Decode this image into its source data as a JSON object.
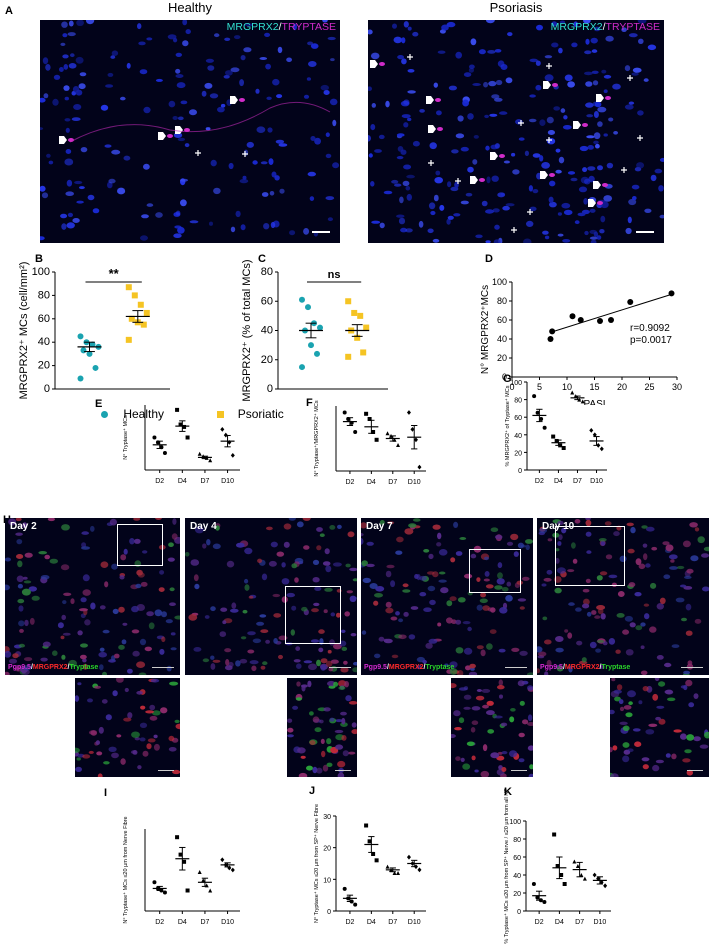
{
  "panels": {
    "A": "A",
    "B": "B",
    "C": "C",
    "D": "D",
    "E": "E",
    "F": "F",
    "G": "G",
    "H": "H",
    "I": "I",
    "J": "J",
    "K": "K"
  },
  "panel_a": {
    "healthy_title": "Healthy",
    "psoriasis_title": "Psoriasis",
    "stain_a": "MRGPRX2",
    "stain_sep": "/",
    "stain_b": "TRYPTASE",
    "colors": {
      "cyan": "#33e0d0",
      "magenta": "#d02cc9",
      "background": "#02031a",
      "nuclei": "#1a2ad6"
    }
  },
  "legend": {
    "healthy": "Healthy",
    "psoriatic": "Psoriatic",
    "colors": {
      "healthy": "#1aa3b0",
      "psoriatic": "#f5c423"
    }
  },
  "panel_h": {
    "days": [
      "Day 2",
      "Day 4",
      "Day 7",
      "Day 10"
    ],
    "stain_pgp": "Pgp9.5",
    "stain_mrg": "MRGPRX2",
    "stain_try": "Tryptase",
    "sep": "/",
    "colors": {
      "pgp": "#d42ad0",
      "mrg": "#ff2a2a",
      "try": "#2ad62a"
    }
  },
  "chart_data": [
    {
      "id": "B",
      "type": "scatter",
      "xlabel": "",
      "ylabel": "MRGPRX2⁺ MCs (cell/mm²)",
      "ylim": [
        0,
        100
      ],
      "yticks": [
        "0",
        "20",
        "40",
        "60",
        "80",
        "100"
      ],
      "significance": "**",
      "series": [
        {
          "name": "Healthy",
          "values": [
            45,
            40,
            38,
            36,
            33,
            30,
            18,
            9
          ],
          "mean": 36,
          "sem": 4
        },
        {
          "name": "Psoriatic",
          "values": [
            87,
            80,
            72,
            65,
            60,
            57,
            55,
            42
          ],
          "mean": 62,
          "sem": 5
        }
      ]
    },
    {
      "id": "C",
      "type": "scatter",
      "xlabel": "",
      "ylabel": "MRGPRX2⁺ (% of total MCs)",
      "ylim": [
        0,
        80
      ],
      "yticks": [
        "0",
        "20",
        "40",
        "60",
        "80"
      ],
      "significance": "ns",
      "series": [
        {
          "name": "Healthy",
          "values": [
            61,
            56,
            45,
            42,
            40,
            30,
            24,
            15
          ],
          "mean": 40,
          "sem": 5
        },
        {
          "name": "Psoriatic",
          "values": [
            60,
            52,
            50,
            42,
            40,
            35,
            25,
            22
          ],
          "mean": 40,
          "sem": 4
        }
      ]
    },
    {
      "id": "D",
      "type": "scatter",
      "xlabel": "PASI",
      "ylabel": "N° MRGPRX2⁺MCs",
      "xlim": [
        0,
        30
      ],
      "ylim": [
        0,
        100
      ],
      "xticks": [
        "0",
        "5",
        "10",
        "15",
        "20",
        "25",
        "30"
      ],
      "yticks": [
        "0",
        "20",
        "40",
        "60",
        "80",
        "100"
      ],
      "points": [
        [
          7,
          40
        ],
        [
          7.3,
          48
        ],
        [
          11,
          64
        ],
        [
          12.5,
          60
        ],
        [
          16,
          59
        ],
        [
          18,
          60
        ],
        [
          21.5,
          79
        ],
        [
          29,
          88
        ]
      ],
      "fit": [
        [
          7,
          47
        ],
        [
          29,
          87
        ]
      ],
      "annotation_r": "r=0.9092",
      "annotation_p": "p=0.0017"
    },
    {
      "id": "E",
      "type": "scatter",
      "xlabel": "",
      "ylabel": "N° Tryptase⁺ MCs",
      "categories": [
        "D2",
        "D4",
        "D7",
        "D10"
      ],
      "ylim": [
        0,
        160
      ],
      "series": [
        {
          "name": "D2",
          "values": [
            80,
            68,
            56,
            42
          ],
          "mean": 62,
          "sem": 9,
          "marker": "circle"
        },
        {
          "name": "D4",
          "values": [
            148,
            112,
            106,
            80
          ],
          "mean": 108,
          "sem": 13,
          "marker": "square"
        },
        {
          "name": "D7",
          "values": [
            40,
            34,
            30,
            24
          ],
          "mean": 31,
          "sem": 3,
          "marker": "triangle"
        },
        {
          "name": "D10",
          "values": [
            100,
            86,
            68,
            36
          ],
          "mean": 71,
          "sem": 14,
          "marker": "diamond"
        }
      ]
    },
    {
      "id": "F",
      "type": "scatter",
      "xlabel": "",
      "ylabel": "N° Tryptase⁺/MRGPRX2⁺ MCs",
      "categories": [
        "D2",
        "D4",
        "D7",
        "D10"
      ],
      "ylim": [
        0,
        50
      ],
      "series": [
        {
          "name": "D2",
          "values": [
            45,
            40,
            37,
            30
          ],
          "mean": 38,
          "sem": 3,
          "marker": "circle"
        },
        {
          "name": "D4",
          "values": [
            44,
            40,
            30,
            24
          ],
          "mean": 34,
          "sem": 5,
          "marker": "square"
        },
        {
          "name": "D7",
          "values": [
            29,
            27,
            24,
            20
          ],
          "mean": 25,
          "sem": 2,
          "marker": "triangle"
        },
        {
          "name": "D10",
          "values": [
            45,
            32,
            24,
            3
          ],
          "mean": 26,
          "sem": 9,
          "marker": "diamond"
        }
      ]
    },
    {
      "id": "G",
      "type": "scatter",
      "xlabel": "",
      "ylabel": "% MRGPRX2⁺ of Tryptase⁺ MCs",
      "categories": [
        "D2",
        "D4",
        "D7",
        "D10"
      ],
      "ylim": [
        0,
        100
      ],
      "yticks": [
        "0",
        "20",
        "40",
        "60",
        "80",
        "100"
      ],
      "series": [
        {
          "name": "D2",
          "values": [
            84,
            65,
            58,
            48
          ],
          "mean": 62,
          "sem": 7,
          "marker": "circle"
        },
        {
          "name": "D4",
          "values": [
            38,
            33,
            28,
            25
          ],
          "mean": 31,
          "sem": 3,
          "marker": "square"
        },
        {
          "name": "D7",
          "values": [
            88,
            84,
            80,
            78
          ],
          "mean": 82,
          "sem": 2,
          "marker": "triangle"
        },
        {
          "name": "D10",
          "values": [
            45,
            40,
            28,
            24
          ],
          "mean": 33,
          "sem": 5,
          "marker": "diamond"
        }
      ]
    },
    {
      "id": "I",
      "type": "scatter",
      "xlabel": "",
      "ylabel": "N° Tryptase⁺ MCs ≤20 µm from Nerve Fibre",
      "categories": [
        "D2",
        "D4",
        "D7",
        "D10"
      ],
      "ylim": [
        0,
        80
      ],
      "series": [
        {
          "name": "D2",
          "values": [
            28,
            22,
            20,
            18
          ],
          "mean": 22,
          "sem": 2,
          "marker": "circle"
        },
        {
          "name": "D4",
          "values": [
            72,
            55,
            48,
            20
          ],
          "mean": 51,
          "sem": 11,
          "marker": "square"
        },
        {
          "name": "D7",
          "values": [
            38,
            30,
            25,
            20
          ],
          "mean": 28,
          "sem": 4,
          "marker": "triangle"
        },
        {
          "name": "D10",
          "values": [
            50,
            45,
            42,
            40
          ],
          "mean": 45,
          "sem": 2,
          "marker": "diamond"
        }
      ]
    },
    {
      "id": "J",
      "type": "scatter",
      "xlabel": "",
      "ylabel": "N° Tryptase⁺ MCs ≤20 µm from SP⁺ Nerve Fibre",
      "categories": [
        "D2",
        "D4",
        "D7",
        "D10"
      ],
      "ylim": [
        0,
        30
      ],
      "yticks": [
        "0",
        "10",
        "20",
        "30"
      ],
      "series": [
        {
          "name": "D2",
          "values": [
            7,
            4,
            3,
            2
          ],
          "mean": 4,
          "sem": 1,
          "marker": "circle"
        },
        {
          "name": "D4",
          "values": [
            27,
            22,
            18,
            16
          ],
          "mean": 21,
          "sem": 2.5,
          "marker": "square"
        },
        {
          "name": "D7",
          "values": [
            14,
            13,
            12,
            12
          ],
          "mean": 13,
          "sem": 0.6,
          "marker": "triangle"
        },
        {
          "name": "D10",
          "values": [
            17,
            15,
            14,
            13
          ],
          "mean": 15,
          "sem": 1,
          "marker": "diamond"
        }
      ]
    },
    {
      "id": "K",
      "type": "scatter",
      "xlabel": "",
      "ylabel": "% Tryptase⁺ MCs ≤20 µm from SP⁺ Nerve / ≤20 µm from all NF",
      "categories": [
        "D2",
        "D4",
        "D7",
        "D10"
      ],
      "ylim": [
        0,
        100
      ],
      "yticks": [
        "0",
        "20",
        "40",
        "60",
        "80",
        "100"
      ],
      "series": [
        {
          "name": "D2",
          "values": [
            30,
            15,
            12,
            10
          ],
          "mean": 17,
          "sem": 5,
          "marker": "circle"
        },
        {
          "name": "D4",
          "values": [
            85,
            50,
            40,
            30
          ],
          "mean": 48,
          "sem": 12,
          "marker": "square"
        },
        {
          "name": "D7",
          "values": [
            55,
            50,
            40,
            36
          ],
          "mean": 46,
          "sem": 8,
          "marker": "triangle"
        },
        {
          "name": "D10",
          "values": [
            40,
            36,
            32,
            28
          ],
          "mean": 34,
          "sem": 4,
          "marker": "diamond"
        }
      ]
    }
  ]
}
